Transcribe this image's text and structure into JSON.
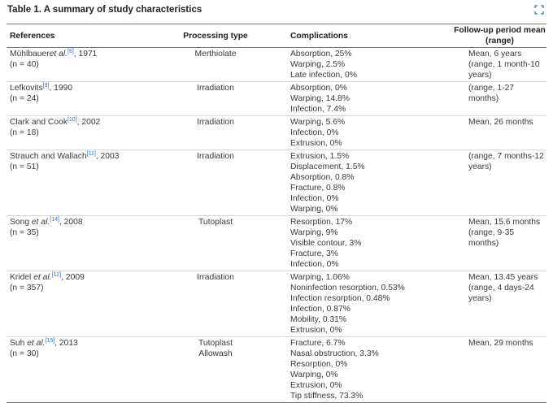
{
  "title": "Table 1. A summary of study characteristics",
  "table": {
    "headers": [
      "References",
      "Processing type",
      "Complications",
      "Follow-up period mean (range)"
    ],
    "rows": [
      {
        "reference": {
          "author": "Mühlbauer",
          "etal": "et al.",
          "ref": "[8]",
          "year": ", 1971",
          "n": "(n = 40)"
        },
        "processing": [
          "Merthiolate"
        ],
        "complications": [
          "Absorption, 25%",
          "Warping, 2.5%",
          "Late infection, 0%"
        ],
        "followup": [
          "Mean, 6 years",
          "(range, 1 month-10 years)"
        ]
      },
      {
        "reference": {
          "author": "Lefkovits",
          "ref": "[9]",
          "year": ", 1990",
          "n": "(n = 24)"
        },
        "processing": [
          "Irradiation"
        ],
        "complications": [
          "Absorption, 0%",
          "Warping, 14.8%",
          "Infection, 7.4%"
        ],
        "followup": [
          "(range, 1-27 months)"
        ]
      },
      {
        "reference": {
          "author": "Clark and Cook",
          "ref": "[10]",
          "year": ", 2002",
          "n": "(n = 18)"
        },
        "processing": [
          "Irradiation"
        ],
        "complications": [
          "Warping, 5.6%",
          "Infection, 0%",
          "Extrusion, 0%"
        ],
        "followup": [
          "Mean, 26 months"
        ]
      },
      {
        "reference": {
          "author": "Strauch and Wallach",
          "ref": "[11]",
          "year": ", 2003",
          "n": "(n = 51)"
        },
        "processing": [
          "Irradiation"
        ],
        "complications": [
          "Extrusion, 1.5%",
          "Displacement, 1.5%",
          "Absorption, 0.8%",
          "Fracture, 0.8%",
          "Infection, 0%",
          "Warping, 0%"
        ],
        "followup": [
          "(range, 7 months-12 years)"
        ]
      },
      {
        "reference": {
          "author": "Song ",
          "etal": "et al.",
          "ref": "[14]",
          "year": ", 2008",
          "n": "(n = 35)"
        },
        "processing": [
          "Tutoplast"
        ],
        "complications": [
          "Resorption, 17%",
          "Warping, 9%",
          "Visible contour, 3%",
          "Fracture, 3%",
          "Infection, 0%"
        ],
        "followup": [
          "Mean, 15.6 months",
          "(range, 9-35 months)"
        ]
      },
      {
        "reference": {
          "author": "Kridel ",
          "etal": "et al.",
          "ref": "[12]",
          "year": ", 2009",
          "n": "(n = 357)"
        },
        "processing": [
          "Irradiation"
        ],
        "complications": [
          "Warping, 1.06%",
          "Noninfection resorption, 0.53%",
          "Infection resorption, 0.48%",
          "Infection, 0.87%",
          "Mobility, 0.31%",
          "Extrusion, 0%"
        ],
        "followup": [
          "Mean, 13.45 years",
          "(range, 4 days-24 years)"
        ]
      },
      {
        "reference": {
          "author": "Suh ",
          "etal": "et al.",
          "ref": "[15]",
          "year": ", 2013",
          "n": "(n = 30)"
        },
        "processing": [
          "Tutoplast",
          "Allowash"
        ],
        "complications": [
          "Fracture, 6.7%",
          "Nasal obstruction, 3.3%",
          "Resorption, 0%",
          "Warping, 0%",
          "Extrusion, 0%",
          "Tip stiffness, 73.3%"
        ],
        "followup": [
          "Mean, 29 months"
        ]
      }
    ]
  }
}
